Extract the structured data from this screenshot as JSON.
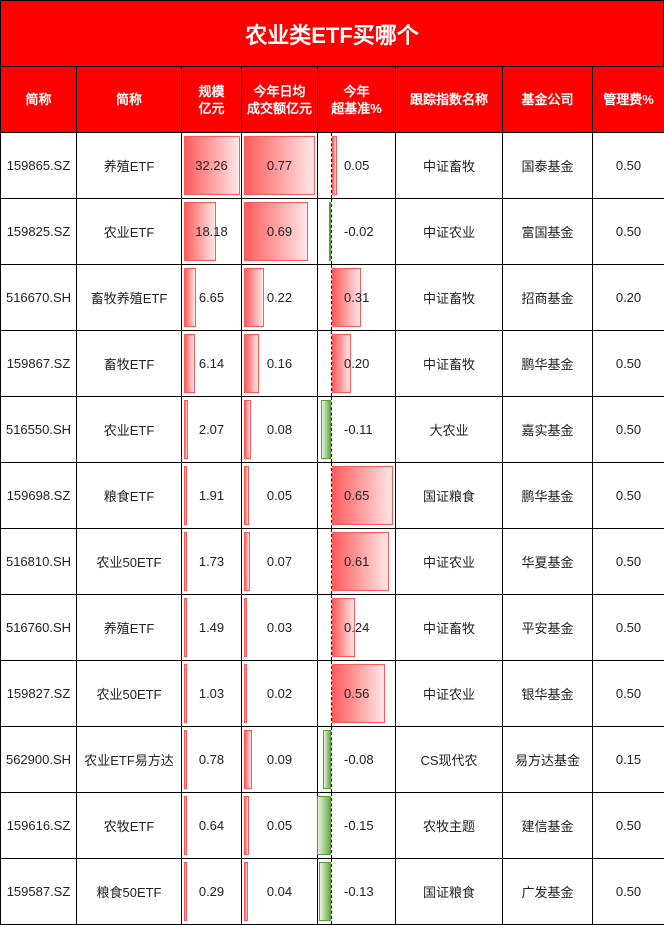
{
  "title": "农业类ETF买哪个",
  "headers": [
    "简称",
    "简称",
    "规模\n亿元",
    "今年日均\n成交额亿元",
    "今年\n超基准%",
    "跟踪指数名称",
    "基金公司",
    "管理费%"
  ],
  "colors": {
    "header_bg": "#ff0000",
    "positive_bar": "#ff5c5c",
    "negative_bar": "#6aaa48"
  },
  "rows": [
    {
      "code": "159865.SZ",
      "name": "养殖ETF",
      "scale": 32.26,
      "volume": 0.77,
      "excess": 0.05,
      "index": "中证畜牧",
      "company": "国泰基金",
      "fee": "0.50"
    },
    {
      "code": "159825.SZ",
      "name": "农业ETF",
      "scale": 18.18,
      "volume": 0.69,
      "excess": -0.02,
      "index": "中证农业",
      "company": "富国基金",
      "fee": "0.50"
    },
    {
      "code": "516670.SH",
      "name": "畜牧养殖ETF",
      "scale": 6.65,
      "volume": 0.22,
      "excess": 0.31,
      "index": "中证畜牧",
      "company": "招商基金",
      "fee": "0.20"
    },
    {
      "code": "159867.SZ",
      "name": "畜牧ETF",
      "scale": 6.14,
      "volume": 0.16,
      "excess": 0.2,
      "index": "中证畜牧",
      "company": "鹏华基金",
      "fee": "0.50"
    },
    {
      "code": "516550.SH",
      "name": "农业ETF",
      "scale": 2.07,
      "volume": 0.08,
      "excess": -0.11,
      "index": "大农业",
      "company": "嘉实基金",
      "fee": "0.50"
    },
    {
      "code": "159698.SZ",
      "name": "粮食ETF",
      "scale": 1.91,
      "volume": 0.05,
      "excess": 0.65,
      "index": "国证粮食",
      "company": "鹏华基金",
      "fee": "0.50"
    },
    {
      "code": "516810.SH",
      "name": "农业50ETF",
      "scale": 1.73,
      "volume": 0.07,
      "excess": 0.61,
      "index": "中证农业",
      "company": "华夏基金",
      "fee": "0.50"
    },
    {
      "code": "516760.SH",
      "name": "养殖ETF",
      "scale": 1.49,
      "volume": 0.03,
      "excess": 0.24,
      "index": "中证畜牧",
      "company": "平安基金",
      "fee": "0.50"
    },
    {
      "code": "159827.SZ",
      "name": "农业50ETF",
      "scale": 1.03,
      "volume": 0.02,
      "excess": 0.56,
      "index": "中证农业",
      "company": "银华基金",
      "fee": "0.50"
    },
    {
      "code": "562900.SH",
      "name": "农业ETF易方达",
      "scale": 0.78,
      "volume": 0.09,
      "excess": -0.08,
      "index": "CS现代农",
      "company": "易方达基金",
      "fee": "0.15"
    },
    {
      "code": "159616.SZ",
      "name": "农牧ETF",
      "scale": 0.64,
      "volume": 0.05,
      "excess": -0.15,
      "index": "农牧主题",
      "company": "建信基金",
      "fee": "0.50"
    },
    {
      "code": "159587.SZ",
      "name": "粮食50ETF",
      "scale": 0.29,
      "volume": 0.04,
      "excess": -0.13,
      "index": "国证粮食",
      "company": "广发基金",
      "fee": "0.50"
    }
  ]
}
